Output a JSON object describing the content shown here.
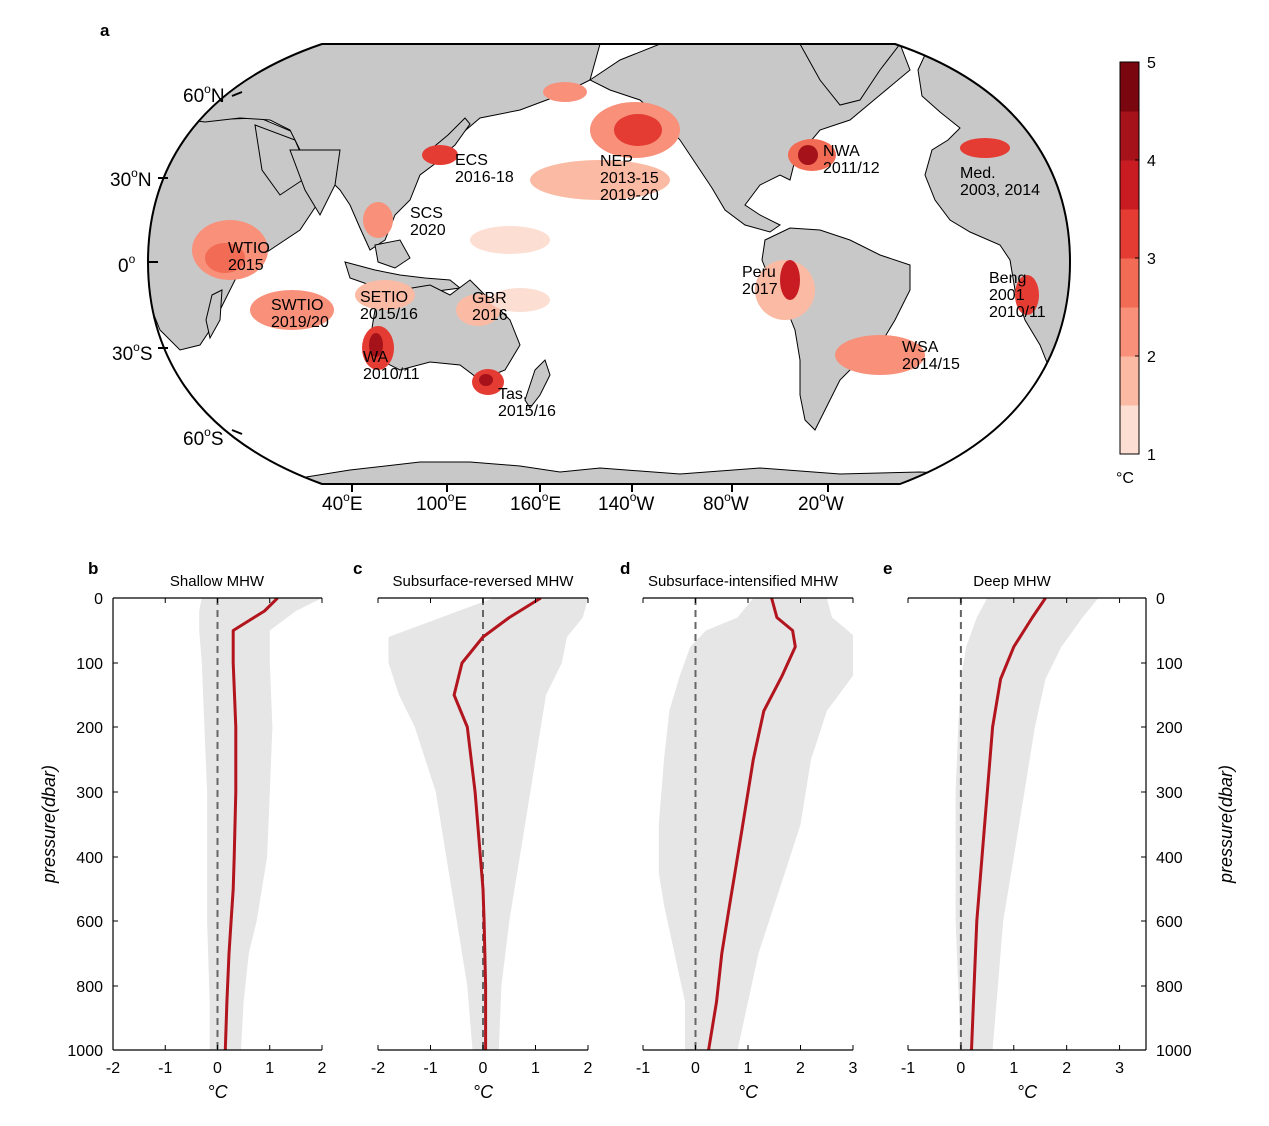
{
  "panel_a": {
    "letter": "a",
    "lat_labels": [
      "60",
      "30",
      "0",
      "30",
      "60"
    ],
    "lat_suffix": [
      "N",
      "N",
      "",
      "S",
      "S"
    ],
    "lon_labels": [
      "40",
      "100",
      "160",
      "140",
      "80",
      "20"
    ],
    "lon_suffix": [
      "E",
      "E",
      "E",
      "W",
      "W",
      "W"
    ],
    "degree_mark": "o",
    "colorbar": {
      "ticks": [
        "1",
        "2",
        "3",
        "4",
        "5"
      ],
      "unit": "°C",
      "colors": [
        "#fcded3",
        "#fbbaa3",
        "#f8907a",
        "#f26b54",
        "#e43b33",
        "#c91c22",
        "#a5121a",
        "#7a0710"
      ]
    },
    "regions": [
      {
        "name": "WTIO",
        "years": [
          "2015"
        ]
      },
      {
        "name": "SWTIO",
        "years": [
          "2019/20"
        ]
      },
      {
        "name": "SETIO",
        "years": [
          "2015/16"
        ]
      },
      {
        "name": "WA",
        "years": [
          "2010/11"
        ]
      },
      {
        "name": "Tas.",
        "years": [
          "2015/16"
        ]
      },
      {
        "name": "GBR",
        "years": [
          "2016"
        ]
      },
      {
        "name": "ECS",
        "years": [
          "2016-18"
        ]
      },
      {
        "name": "SCS",
        "years": [
          "2020"
        ]
      },
      {
        "name": "NEP",
        "years": [
          "2013-15",
          "2019-20"
        ]
      },
      {
        "name": "NWA",
        "years": [
          "2011/12"
        ]
      },
      {
        "name": "Med.",
        "years": [
          "2003, 2014"
        ]
      },
      {
        "name": "Peru",
        "years": [
          "2017"
        ]
      },
      {
        "name": "Beng",
        "years": [
          "2001",
          "2010/11"
        ]
      },
      {
        "name": "WSA",
        "years": [
          "2014/15"
        ]
      }
    ]
  },
  "profiles_common": {
    "ylabel": "pressure(dbar)",
    "xlabel": "°C",
    "yticks": [
      "0",
      "100",
      "200",
      "300",
      "400",
      "600",
      "800",
      "1000"
    ]
  },
  "chart_data": [
    {
      "type": "line",
      "letter": "b",
      "title": "Shallow MHW",
      "xlim": [
        -2,
        2
      ],
      "xticks": [
        "-2",
        "-1",
        "0",
        "1",
        "2"
      ],
      "ylim": [
        0,
        1000
      ],
      "x": [
        1.15,
        0.9,
        0.3,
        0.3,
        0.35,
        0.35,
        0.32,
        0.3,
        0.26,
        0.22,
        0.18,
        0.15
      ],
      "y": [
        0,
        20,
        50,
        100,
        200,
        300,
        400,
        500,
        600,
        700,
        850,
        1000
      ],
      "band_lower": [
        -0.3,
        -0.35,
        -0.35,
        -0.3,
        -0.25,
        -0.2,
        -0.2,
        -0.2,
        -0.2,
        -0.18,
        -0.15,
        -0.15
      ],
      "band_upper": [
        2.0,
        1.5,
        1.0,
        1.0,
        1.05,
        1.0,
        0.95,
        0.85,
        0.75,
        0.6,
        0.5,
        0.45
      ]
    },
    {
      "type": "line",
      "letter": "c",
      "title": "Subsurface-reversed MHW",
      "xlim": [
        -2,
        2
      ],
      "xticks": [
        "-2",
        "-1",
        "0",
        "1",
        "2"
      ],
      "ylim": [
        0,
        1000
      ],
      "x": [
        1.1,
        0.5,
        0.0,
        -0.4,
        -0.55,
        -0.3,
        -0.15,
        -0.05,
        0.0,
        0.02,
        0.05,
        0.05
      ],
      "y": [
        0,
        30,
        60,
        100,
        150,
        200,
        300,
        400,
        500,
        600,
        800,
        1000
      ],
      "band_lower": [
        0.2,
        -0.8,
        -1.8,
        -1.8,
        -1.6,
        -1.3,
        -0.9,
        -0.7,
        -0.6,
        -0.5,
        -0.3,
        -0.2
      ],
      "band_upper": [
        2.0,
        1.9,
        1.6,
        1.5,
        1.2,
        1.1,
        0.9,
        0.7,
        0.6,
        0.5,
        0.35,
        0.3
      ]
    },
    {
      "type": "line",
      "letter": "d",
      "title": "Subsurface-intensified MHW",
      "xlim": [
        -1,
        3
      ],
      "xticks": [
        "-1",
        "0",
        "1",
        "2",
        "3"
      ],
      "ylim": [
        0,
        1000
      ],
      "x": [
        1.45,
        1.55,
        1.85,
        1.9,
        1.65,
        1.3,
        1.1,
        0.9,
        0.75,
        0.65,
        0.5,
        0.4,
        0.25
      ],
      "y": [
        0,
        30,
        50,
        75,
        120,
        175,
        250,
        350,
        450,
        550,
        700,
        850,
        1000
      ],
      "band_lower": [
        1.1,
        0.8,
        0.2,
        -0.1,
        -0.3,
        -0.5,
        -0.6,
        -0.7,
        -0.7,
        -0.6,
        -0.4,
        -0.2,
        -0.2
      ],
      "band_upper": [
        2.5,
        2.6,
        2.9,
        3.25,
        3.0,
        2.5,
        2.2,
        2.0,
        1.7,
        1.5,
        1.2,
        1.0,
        0.8
      ]
    },
    {
      "type": "line",
      "letter": "e",
      "title": "Deep MHW",
      "xlim": [
        -1,
        3.5
      ],
      "xticks": [
        "-1",
        "0",
        "1",
        "2",
        "3"
      ],
      "ylim": [
        0,
        1000
      ],
      "x": [
        1.6,
        1.35,
        1.0,
        0.75,
        0.6,
        0.5,
        0.4,
        0.35,
        0.3,
        0.25,
        0.2
      ],
      "y": [
        0,
        30,
        75,
        125,
        200,
        300,
        400,
        500,
        600,
        800,
        1000
      ],
      "band_lower": [
        0.5,
        0.3,
        0.1,
        0.0,
        -0.05,
        -0.1,
        -0.1,
        -0.1,
        -0.1,
        -0.05,
        0.0
      ],
      "band_upper": [
        2.6,
        2.3,
        1.9,
        1.6,
        1.4,
        1.2,
        1.0,
        0.9,
        0.8,
        0.7,
        0.6
      ]
    }
  ]
}
